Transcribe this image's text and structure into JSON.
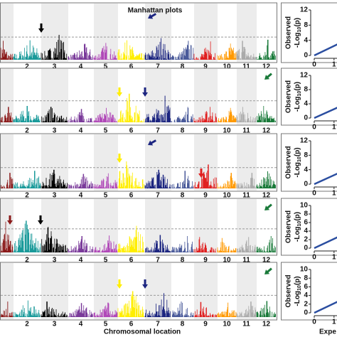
{
  "chart_data": [
    {
      "type": "manhattan",
      "title": "Manhattan plots",
      "categories": [
        null,
        "2",
        "3",
        "4",
        "5",
        "6",
        "7",
        "8",
        "9",
        "10",
        "11",
        "12"
      ],
      "ylim": [
        0,
        10
      ],
      "threshold": 4.2,
      "colors": [
        "#8b1a1a",
        "#1a9a9a",
        "#000000",
        "#7a3a9a",
        "#b048b8",
        "#ffee00",
        "#1c2580",
        "#4a5a9a",
        "#e02020",
        "#ff9900",
        "#aaaaaa",
        "#1a7a3a"
      ],
      "values": [
        3.5,
        3.6,
        4.6,
        3.0,
        3.1,
        3.6,
        4.0,
        3.5,
        3.4,
        3.0,
        3.5,
        3.7
      ]
    },
    {
      "type": "manhattan",
      "categories": [
        null,
        "2",
        "3",
        "4",
        "5",
        "6",
        "7",
        "8",
        "9",
        "10",
        "11",
        "12"
      ],
      "ylim": [
        0,
        10
      ],
      "threshold": 4.2,
      "colors": [
        "#8b1a1a",
        "#1a9a9a",
        "#000000",
        "#7a3a9a",
        "#b048b8",
        "#ffee00",
        "#1c2580",
        "#4a5a9a",
        "#e02020",
        "#ff9900",
        "#aaaaaa",
        "#1a7a3a"
      ],
      "values": [
        3.0,
        3.2,
        3.0,
        2.6,
        2.8,
        5.6,
        5.2,
        3.0,
        3.0,
        2.8,
        3.0,
        3.2
      ]
    },
    {
      "type": "manhattan",
      "categories": [
        null,
        "2",
        "3",
        "4",
        "5",
        "6",
        "7",
        "8",
        "9",
        "10",
        "11",
        "12"
      ],
      "ylim": [
        0,
        10
      ],
      "threshold": 4.0,
      "colors": [
        "#8b1a1a",
        "#1a9a9a",
        "#000000",
        "#7a3a9a",
        "#b048b8",
        "#ffee00",
        "#1c2580",
        "#4a5a9a",
        "#e02020",
        "#ff9900",
        "#aaaaaa",
        "#1a7a3a"
      ],
      "values": [
        3.0,
        3.4,
        3.6,
        2.8,
        2.9,
        5.2,
        3.6,
        3.4,
        4.6,
        3.0,
        3.0,
        3.3
      ]
    },
    {
      "type": "manhattan",
      "categories": [
        null,
        "2",
        "3",
        "4",
        "5",
        "6",
        "7",
        "8",
        "9",
        "10",
        "11",
        "12"
      ],
      "ylim": [
        0,
        10
      ],
      "threshold": 4.6,
      "colors": [
        "#8b1a1a",
        "#1a9a9a",
        "#000000",
        "#7a3a9a",
        "#b048b8",
        "#ffee00",
        "#1c2580",
        "#4a5a9a",
        "#e02020",
        "#ff9900",
        "#aaaaaa",
        "#1a7a3a"
      ],
      "values": [
        6.0,
        6.2,
        5.0,
        3.2,
        3.3,
        5.2,
        3.4,
        3.2,
        3.0,
        2.8,
        3.0,
        3.2
      ]
    },
    {
      "type": "manhattan",
      "xlabel": "Chromosomal location",
      "categories": [
        null,
        "2",
        "3",
        "4",
        "5",
        "6",
        "7",
        "8",
        "9",
        "10",
        "11",
        "12"
      ],
      "ylim": [
        0,
        10
      ],
      "threshold": 4.2,
      "colors": [
        "#8b1a1a",
        "#1a9a9a",
        "#000000",
        "#7a3a9a",
        "#b048b8",
        "#ffee00",
        "#1c2580",
        "#4a5a9a",
        "#e02020",
        "#ff9900",
        "#aaaaaa",
        "#1a7a3a"
      ],
      "values": [
        3.0,
        3.2,
        3.0,
        2.7,
        2.8,
        5.0,
        4.6,
        3.0,
        2.9,
        2.8,
        3.0,
        3.1
      ]
    },
    {
      "type": "line",
      "ylabel": "Observed",
      "ylabel2": {
        "prefix": "-Log",
        "sub": "10",
        "suffix": "(p)"
      },
      "color": "#2b4ea0",
      "x": [
        0,
        1.2
      ],
      "values": [
        0,
        3
      ],
      "xlim": [
        0,
        1.15
      ],
      "xticks": [
        0,
        1
      ],
      "ylim": [
        0,
        12
      ],
      "yticks": [
        0,
        4,
        8,
        12
      ]
    },
    {
      "type": "line",
      "ylabel": "Observed",
      "ylabel2": {
        "prefix": "-Log",
        "sub": "10",
        "suffix": "(p)"
      },
      "color": "#2b4ea0",
      "x": [
        0,
        1.2
      ],
      "values": [
        0,
        3
      ],
      "xlim": [
        0,
        1.15
      ],
      "xticks": [
        0,
        1
      ],
      "ylim": [
        0,
        12
      ],
      "yticks": [
        0,
        4,
        8,
        12
      ]
    },
    {
      "type": "line",
      "ylabel": "Observed",
      "ylabel2": {
        "prefix": "-Log",
        "sub": "10",
        "suffix": "(p)"
      },
      "color": "#2b4ea0",
      "x": [
        0,
        1.2
      ],
      "values": [
        0,
        3
      ],
      "xlim": [
        0,
        1.15
      ],
      "xticks": [
        0,
        1
      ],
      "ylim": [
        0,
        12
      ],
      "yticks": [
        0,
        4,
        8,
        12
      ]
    },
    {
      "type": "line",
      "ylabel": "Observed",
      "ylabel2": {
        "prefix": "-Log",
        "sub": "10",
        "suffix": "(p)"
      },
      "color": "#2b4ea0",
      "x": [
        0,
        1.2
      ],
      "values": [
        0,
        2.6
      ],
      "xlim": [
        0,
        1.15
      ],
      "xticks": [
        0,
        1
      ],
      "ylim": [
        0,
        10
      ],
      "yticks": [
        0,
        2,
        4,
        6,
        8,
        10
      ]
    },
    {
      "type": "line",
      "ylabel": "Observed",
      "ylabel2": {
        "prefix": "-Log",
        "sub": "10",
        "suffix": "(p)"
      },
      "xlabel": "Expe",
      "color": "#2b4ea0",
      "x": [
        0,
        1.2
      ],
      "values": [
        0,
        2.6
      ],
      "xlim": [
        0,
        1.15
      ],
      "xticks": [
        0,
        1
      ],
      "ylim": [
        0,
        10
      ],
      "yticks": [
        0,
        2,
        4,
        6,
        8,
        10
      ]
    }
  ]
}
